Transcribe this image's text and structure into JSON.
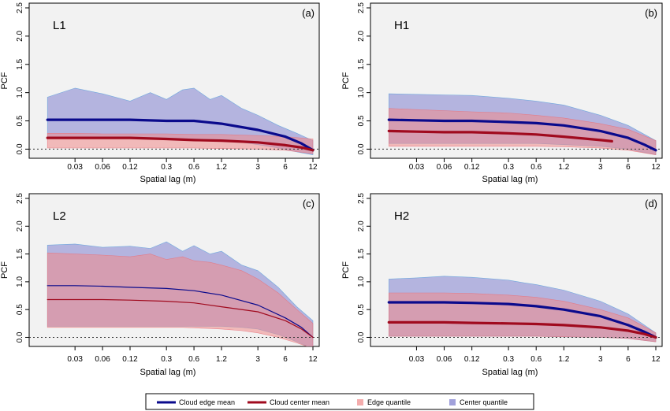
{
  "colors": {
    "panel_bg": "#f2f2f2",
    "edge_mean": "#0a0a8c",
    "center_mean": "#a00a1e",
    "edge_quantile": "#f08a8a",
    "center_quantile": "#8a8ad2",
    "blue_fringe": "#5aa0dc",
    "red_fringe": "#e8707a"
  },
  "legend": {
    "edge_mean": "Cloud edge mean",
    "center_mean": "Cloud center mean",
    "edge_quantile": "Edge quantile",
    "center_quantile": "Center quantile"
  },
  "chart_data": [
    {
      "type": "area",
      "panel_label": "L1",
      "tag": "(a)",
      "xlabel": "Spatial lag (m)",
      "ylabel": "PCF",
      "xscale": "log",
      "xticks": [
        0.03,
        0.06,
        0.12,
        0.3,
        0.6,
        1.2,
        3,
        6,
        12
      ],
      "xtick_labels": [
        "0.03",
        "0.06",
        "0.12",
        "0.3",
        "0.6",
        "1.2",
        "3",
        "6",
        "12"
      ],
      "yticks": [
        0.0,
        0.5,
        1.0,
        1.5,
        2.0,
        2.5
      ],
      "ytick_labels": [
        "0.0",
        "0.5",
        "1.0",
        "1.5",
        "2.0",
        "2.5"
      ],
      "xlim": [
        0.012,
        12
      ],
      "ylim": [
        -0.05,
        2.5
      ],
      "reference_line": 0.0,
      "line_width": "thick",
      "series": [
        {
          "name": "Cloud edge mean",
          "x": [
            0.015,
            0.03,
            0.06,
            0.12,
            0.3,
            0.6,
            1.2,
            3,
            6,
            9,
            12
          ],
          "y": [
            0.52,
            0.52,
            0.52,
            0.52,
            0.5,
            0.5,
            0.45,
            0.34,
            0.22,
            0.1,
            -0.02
          ]
        },
        {
          "name": "Cloud center mean",
          "x": [
            0.015,
            0.03,
            0.06,
            0.12,
            0.3,
            0.6,
            1.2,
            3,
            6,
            9,
            12
          ],
          "y": [
            0.2,
            0.2,
            0.2,
            0.2,
            0.18,
            0.16,
            0.15,
            0.12,
            0.07,
            0.03,
            -0.02
          ]
        },
        {
          "name": "Center quantile",
          "x": [
            0.015,
            0.03,
            0.06,
            0.12,
            0.2,
            0.3,
            0.45,
            0.6,
            0.9,
            1.2,
            2,
            3,
            5,
            8,
            12
          ],
          "upper": [
            0.92,
            1.08,
            0.98,
            0.85,
            1.0,
            0.88,
            1.05,
            1.08,
            0.88,
            0.95,
            0.72,
            0.6,
            0.42,
            0.28,
            0.15
          ],
          "lower": [
            0.2,
            0.2,
            0.2,
            0.2,
            0.2,
            0.18,
            0.18,
            0.18,
            0.16,
            0.15,
            0.12,
            0.08,
            0.02,
            -0.05,
            -0.1
          ]
        },
        {
          "name": "Edge quantile",
          "x": [
            0.015,
            0.03,
            0.06,
            0.12,
            0.3,
            0.6,
            1.2,
            3,
            6,
            12
          ],
          "upper": [
            0.28,
            0.28,
            0.27,
            0.27,
            0.27,
            0.26,
            0.26,
            0.24,
            0.22,
            0.18
          ],
          "lower": [
            0.02,
            0.02,
            0.02,
            0.02,
            0.02,
            0.02,
            0.01,
            0.0,
            -0.02,
            -0.08
          ]
        }
      ]
    },
    {
      "type": "area",
      "panel_label": "H1",
      "tag": "(b)",
      "xlabel": "Spatial lag (m)",
      "ylabel": "PCF",
      "xscale": "log",
      "xticks": [
        0.03,
        0.06,
        0.12,
        0.3,
        0.6,
        1.2,
        3,
        6,
        12
      ],
      "xtick_labels": [
        "0.03",
        "0.06",
        "0.12",
        "0.3",
        "0.6",
        "1.2",
        "3",
        "6",
        "12"
      ],
      "yticks": [
        0.0,
        0.5,
        1.0,
        1.5,
        2.0,
        2.5
      ],
      "ytick_labels": [
        "0.0",
        "0.5",
        "1.0",
        "1.5",
        "2.0",
        "2.5"
      ],
      "xlim": [
        0.012,
        12
      ],
      "ylim": [
        -0.05,
        2.5
      ],
      "reference_line": 0.0,
      "line_width": "thick",
      "series": [
        {
          "name": "Cloud edge mean",
          "x": [
            0.015,
            0.03,
            0.06,
            0.12,
            0.3,
            0.6,
            1.2,
            3,
            6,
            9,
            12
          ],
          "y": [
            0.52,
            0.51,
            0.5,
            0.5,
            0.48,
            0.46,
            0.42,
            0.32,
            0.2,
            0.08,
            -0.02
          ]
        },
        {
          "name": "Cloud center mean",
          "x": [
            0.015,
            0.03,
            0.06,
            0.12,
            0.3,
            0.6,
            1.2,
            3,
            4
          ],
          "y": [
            0.32,
            0.31,
            0.3,
            0.3,
            0.28,
            0.26,
            0.22,
            0.16,
            0.14
          ]
        },
        {
          "name": "Center quantile",
          "x": [
            0.015,
            0.03,
            0.06,
            0.12,
            0.3,
            0.6,
            1.2,
            3,
            6,
            12
          ],
          "upper": [
            0.98,
            0.97,
            0.96,
            0.95,
            0.9,
            0.85,
            0.78,
            0.6,
            0.42,
            0.15
          ],
          "lower": [
            0.1,
            0.1,
            0.1,
            0.1,
            0.1,
            0.1,
            0.08,
            0.05,
            0.0,
            -0.1
          ]
        },
        {
          "name": "Edge quantile",
          "x": [
            0.015,
            0.03,
            0.06,
            0.12,
            0.3,
            0.6,
            1.2,
            3,
            6,
            12
          ],
          "upper": [
            0.72,
            0.7,
            0.68,
            0.66,
            0.64,
            0.6,
            0.55,
            0.45,
            0.35,
            0.15
          ],
          "lower": [
            0.05,
            0.05,
            0.05,
            0.05,
            0.05,
            0.05,
            0.04,
            0.02,
            -0.02,
            -0.1
          ]
        }
      ]
    },
    {
      "type": "area",
      "panel_label": "L2",
      "tag": "(c)",
      "xlabel": "Spatial lag (m)",
      "ylabel": "PCF",
      "xscale": "log",
      "xticks": [
        0.03,
        0.06,
        0.12,
        0.3,
        0.6,
        1.2,
        3,
        6,
        12
      ],
      "xtick_labels": [
        "0.03",
        "0.06",
        "0.12",
        "0.3",
        "0.6",
        "1.2",
        "3",
        "6",
        "12"
      ],
      "yticks": [
        0.0,
        0.5,
        1.0,
        1.5,
        2.0,
        2.5
      ],
      "ytick_labels": [
        "0.0",
        "0.5",
        "1.0",
        "1.5",
        "2.0",
        "2.5"
      ],
      "xlim": [
        0.012,
        12
      ],
      "ylim": [
        -0.05,
        2.5
      ],
      "reference_line": 0.0,
      "line_width": "thin",
      "series": [
        {
          "name": "Cloud edge mean",
          "x": [
            0.015,
            0.03,
            0.06,
            0.12,
            0.3,
            0.6,
            1.2,
            3,
            6,
            9,
            12
          ],
          "y": [
            0.93,
            0.93,
            0.92,
            0.9,
            0.88,
            0.84,
            0.76,
            0.58,
            0.35,
            0.18,
            0.0
          ]
        },
        {
          "name": "Cloud center mean",
          "x": [
            0.015,
            0.03,
            0.06,
            0.12,
            0.3,
            0.6,
            1.2,
            3,
            6,
            9,
            12
          ],
          "y": [
            0.68,
            0.68,
            0.68,
            0.67,
            0.65,
            0.62,
            0.55,
            0.46,
            0.3,
            0.15,
            0.0
          ]
        },
        {
          "name": "Center quantile",
          "x": [
            0.015,
            0.03,
            0.06,
            0.12,
            0.2,
            0.3,
            0.45,
            0.6,
            0.9,
            1.2,
            2,
            3,
            5,
            8,
            12
          ],
          "upper": [
            1.66,
            1.68,
            1.62,
            1.64,
            1.6,
            1.72,
            1.55,
            1.65,
            1.5,
            1.55,
            1.3,
            1.2,
            0.9,
            0.55,
            0.3
          ],
          "lower": [
            0.2,
            0.2,
            0.2,
            0.2,
            0.2,
            0.2,
            0.2,
            0.2,
            0.2,
            0.2,
            0.18,
            0.15,
            0.05,
            -0.08,
            -0.2
          ]
        },
        {
          "name": "Edge quantile",
          "x": [
            0.015,
            0.03,
            0.06,
            0.12,
            0.2,
            0.3,
            0.45,
            0.6,
            0.9,
            1.2,
            2,
            3,
            5,
            8,
            12
          ],
          "upper": [
            1.52,
            1.5,
            1.48,
            1.45,
            1.5,
            1.4,
            1.45,
            1.38,
            1.35,
            1.3,
            1.2,
            1.05,
            0.8,
            0.5,
            0.25
          ],
          "lower": [
            0.18,
            0.18,
            0.18,
            0.18,
            0.18,
            0.18,
            0.18,
            0.17,
            0.16,
            0.15,
            0.12,
            0.08,
            0.0,
            -0.1,
            -0.2
          ]
        }
      ]
    },
    {
      "type": "area",
      "panel_label": "H2",
      "tag": "(d)",
      "xlabel": "Spatial lag (m)",
      "ylabel": "PCF",
      "xscale": "log",
      "xticks": [
        0.03,
        0.06,
        0.12,
        0.3,
        0.6,
        1.2,
        3,
        6,
        12
      ],
      "xtick_labels": [
        "0.03",
        "0.06",
        "0.12",
        "0.3",
        "0.6",
        "1.2",
        "3",
        "6",
        "12"
      ],
      "yticks": [
        0.0,
        0.5,
        1.0,
        1.5,
        2.0,
        2.5
      ],
      "ytick_labels": [
        "0.0",
        "0.5",
        "1.0",
        "1.5",
        "2.0",
        "2.5"
      ],
      "xlim": [
        0.012,
        12
      ],
      "ylim": [
        -0.05,
        2.5
      ],
      "reference_line": 0.0,
      "line_width": "thick",
      "series": [
        {
          "name": "Cloud edge mean",
          "x": [
            0.015,
            0.03,
            0.06,
            0.12,
            0.3,
            0.6,
            1.2,
            3,
            6,
            9,
            12
          ],
          "y": [
            0.63,
            0.63,
            0.63,
            0.62,
            0.6,
            0.56,
            0.5,
            0.38,
            0.22,
            0.1,
            0.0
          ]
        },
        {
          "name": "Cloud center mean",
          "x": [
            0.015,
            0.03,
            0.06,
            0.12,
            0.3,
            0.6,
            1.2,
            3,
            6,
            9,
            12
          ],
          "y": [
            0.27,
            0.27,
            0.27,
            0.26,
            0.25,
            0.24,
            0.22,
            0.18,
            0.12,
            0.06,
            0.0
          ]
        },
        {
          "name": "Center quantile",
          "x": [
            0.015,
            0.03,
            0.06,
            0.12,
            0.3,
            0.45,
            0.6,
            1.2,
            3,
            6,
            12
          ],
          "upper": [
            1.05,
            1.07,
            1.1,
            1.08,
            1.03,
            0.98,
            0.95,
            0.85,
            0.65,
            0.42,
            0.08
          ],
          "lower": [
            0.02,
            0.02,
            0.02,
            0.02,
            0.02,
            0.02,
            0.02,
            0.01,
            0.0,
            -0.02,
            -0.08
          ]
        },
        {
          "name": "Edge quantile",
          "x": [
            0.015,
            0.03,
            0.06,
            0.12,
            0.3,
            0.6,
            1.2,
            3,
            6,
            12
          ],
          "upper": [
            0.8,
            0.8,
            0.8,
            0.79,
            0.76,
            0.72,
            0.65,
            0.5,
            0.35,
            0.08
          ],
          "lower": [
            0.02,
            0.02,
            0.02,
            0.02,
            0.02,
            0.02,
            0.01,
            0.0,
            -0.02,
            -0.08
          ]
        }
      ]
    }
  ]
}
